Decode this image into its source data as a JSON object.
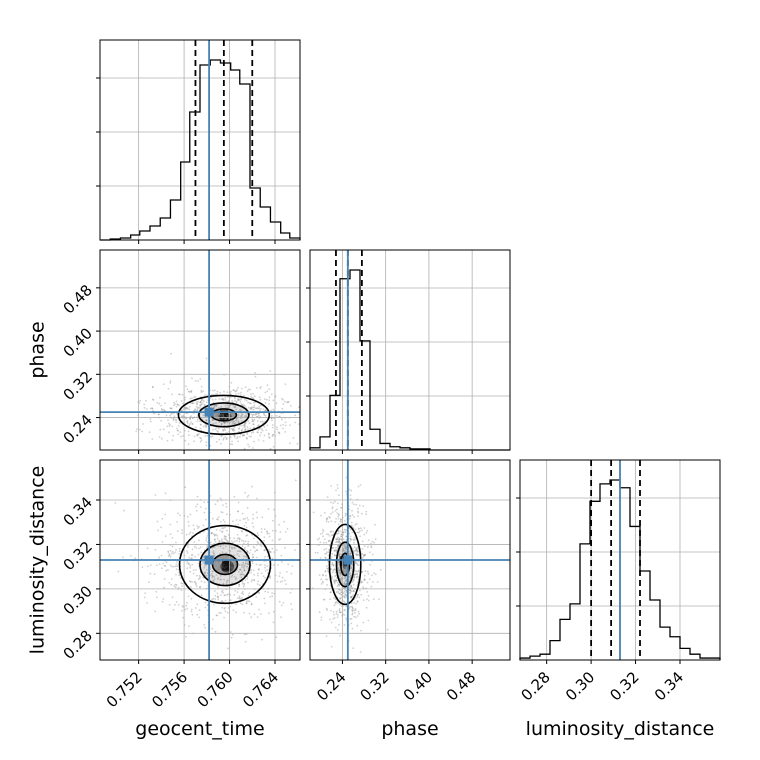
{
  "chart_data": {
    "type": "corner",
    "parameters": [
      {
        "name": "geocent_time",
        "label": "geocent_time",
        "range": [
          0.7486,
          0.7662
        ],
        "ticks": [
          0.752,
          0.756,
          0.76,
          0.764
        ],
        "tick_labels": [
          "0.752",
          "0.756",
          "0.760",
          "0.764"
        ],
        "truth": 0.7582,
        "quantiles": [
          0.757,
          0.7595,
          0.762
        ]
      },
      {
        "name": "phase",
        "label": "phase",
        "range": [
          0.18,
          0.55
        ],
        "ticks": [
          0.24,
          0.32,
          0.4,
          0.48
        ],
        "tick_labels": [
          "0.24",
          "0.32",
          "0.40",
          "0.48"
        ],
        "truth": 0.25,
        "quantiles": [
          0.228,
          0.25,
          0.276
        ]
      },
      {
        "name": "luminosity_distance",
        "label": "luminosity_distance",
        "range": [
          0.268,
          0.358
        ],
        "ticks": [
          0.28,
          0.3,
          0.32,
          0.34
        ],
        "tick_labels": [
          "0.28",
          "0.30",
          "0.32",
          "0.34"
        ],
        "truth": 0.313,
        "quantiles": [
          0.3,
          0.309,
          0.322
        ]
      }
    ],
    "histograms": [
      {
        "param": "geocent_time",
        "edges": [
          0.7486,
          0.7495,
          0.7504,
          0.7513,
          0.7521,
          0.753,
          0.7539,
          0.7548,
          0.7557,
          0.7565,
          0.7574,
          0.7583,
          0.7592,
          0.7601,
          0.7609,
          0.7618,
          0.7627,
          0.7636,
          0.7645,
          0.7653,
          0.7662
        ],
        "counts": [
          0,
          1,
          2,
          5,
          9,
          14,
          22,
          40,
          78,
          128,
          175,
          180,
          177,
          170,
          156,
          52,
          33,
          18,
          7,
          2
        ]
      },
      {
        "param": "phase",
        "edges": [
          0.18,
          0.1985,
          0.217,
          0.2355,
          0.254,
          0.2725,
          0.291,
          0.3095,
          0.328,
          0.3465,
          0.365,
          0.3835,
          0.402,
          0.4205,
          0.439,
          0.4575,
          0.476,
          0.4945,
          0.513,
          0.5315,
          0.55
        ],
        "counts": [
          2,
          12,
          50,
          157,
          165,
          100,
          19,
          6,
          3,
          2,
          1,
          1,
          0,
          0,
          0,
          0,
          0,
          0,
          0,
          0
        ]
      },
      {
        "param": "luminosity_distance",
        "edges": [
          0.268,
          0.2725,
          0.277,
          0.2815,
          0.286,
          0.2905,
          0.295,
          0.2995,
          0.304,
          0.3085,
          0.313,
          0.3175,
          0.322,
          0.3265,
          0.331,
          0.3355,
          0.34,
          0.3445,
          0.349,
          0.3535,
          0.358
        ],
        "counts": [
          1,
          2,
          3,
          10,
          21,
          29,
          60,
          82,
          91,
          93,
          89,
          69,
          46,
          31,
          17,
          12,
          6,
          3,
          1,
          1
        ]
      }
    ],
    "contours": [
      {
        "x": "geocent_time",
        "y": "phase",
        "center": [
          0.7595,
          0.245
        ],
        "levels": [
          {
            "sx": 0.0011,
            "sy": 0.011
          },
          {
            "sx": 0.0022,
            "sy": 0.022
          },
          {
            "sx": 0.004,
            "sy": 0.036
          }
        ],
        "peak": [
          0.7596,
          0.242
        ]
      },
      {
        "x": "geocent_time",
        "y": "luminosity_distance",
        "center": [
          0.7596,
          0.311
        ],
        "levels": [
          {
            "sx": 0.0011,
            "sy": 0.0045
          },
          {
            "sx": 0.0022,
            "sy": 0.0095
          },
          {
            "sx": 0.004,
            "sy": 0.0175
          }
        ],
        "peak": [
          0.7598,
          0.31
        ]
      },
      {
        "x": "phase",
        "y": "luminosity_distance",
        "center": [
          0.245,
          0.311
        ],
        "levels": [
          {
            "sx": 0.008,
            "sy": 0.005
          },
          {
            "sx": 0.016,
            "sy": 0.01
          },
          {
            "sx": 0.029,
            "sy": 0.018
          }
        ],
        "peak": [
          0.244,
          0.312
        ]
      }
    ],
    "truth_color": "#4682b4",
    "quantile_style": "black dashed",
    "grid": true
  }
}
